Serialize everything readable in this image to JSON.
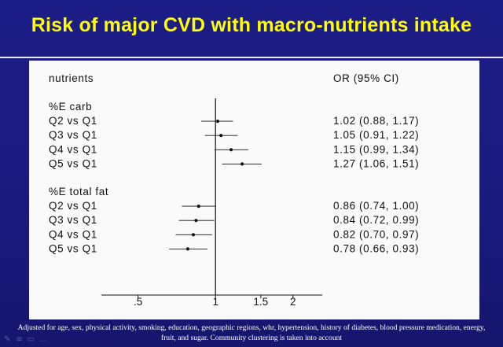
{
  "slide": {
    "title": "Risk of major CVD with macro-nutrients intake",
    "footnote_line1": "Adjusted for age, sex, physical activity, smoking, education, geographic regions, whr, hypertension, history of diabetes, blood pressure medication, energy,",
    "footnote_line2": "fruit, and sugar. Community clustering is taken into account",
    "controls": [
      "pen-icon",
      "menu-icon",
      "slides-icon",
      "more-icon"
    ]
  },
  "colors": {
    "background": "#1a1a7e",
    "title": "#ffff00",
    "panel": "#fafafa",
    "ink": "#111111"
  },
  "chart_data": {
    "type": "forest",
    "header_left": "nutrients",
    "header_right": "OR (95% CI)",
    "x_ticks": [
      0.5,
      1,
      1.5,
      2
    ],
    "x_tick_labels": [
      ".5",
      "1",
      "1.5",
      "2"
    ],
    "x_scale": "log",
    "xlim": [
      0.36,
      2.6
    ],
    "reference_line": 1,
    "groups": [
      {
        "label": "%E carb",
        "rows": [
          {
            "label": "Q2 vs Q1",
            "or": 1.02,
            "lo": 0.88,
            "hi": 1.17,
            "text": "1.02 (0.88, 1.17)"
          },
          {
            "label": "Q3 vs Q1",
            "or": 1.05,
            "lo": 0.91,
            "hi": 1.22,
            "text": "1.05 (0.91, 1.22)"
          },
          {
            "label": "Q4 vs Q1",
            "or": 1.15,
            "lo": 0.99,
            "hi": 1.34,
            "text": "1.15 (0.99, 1.34)"
          },
          {
            "label": "Q5 vs Q1",
            "or": 1.27,
            "lo": 1.06,
            "hi": 1.51,
            "text": "1.27 (1.06, 1.51)"
          }
        ]
      },
      {
        "label": "%E total fat",
        "rows": [
          {
            "label": "Q2 vs Q1",
            "or": 0.86,
            "lo": 0.74,
            "hi": 1.0,
            "text": "0.86 (0.74, 1.00)"
          },
          {
            "label": "Q3 vs Q1",
            "or": 0.84,
            "lo": 0.72,
            "hi": 0.99,
            "text": "0.84 (0.72, 0.99)"
          },
          {
            "label": "Q4 vs Q1",
            "or": 0.82,
            "lo": 0.7,
            "hi": 0.97,
            "text": "0.82 (0.70, 0.97)"
          },
          {
            "label": "Q5 vs Q1",
            "or": 0.78,
            "lo": 0.66,
            "hi": 0.93,
            "text": "0.78 (0.66, 0.93)"
          }
        ]
      }
    ]
  }
}
